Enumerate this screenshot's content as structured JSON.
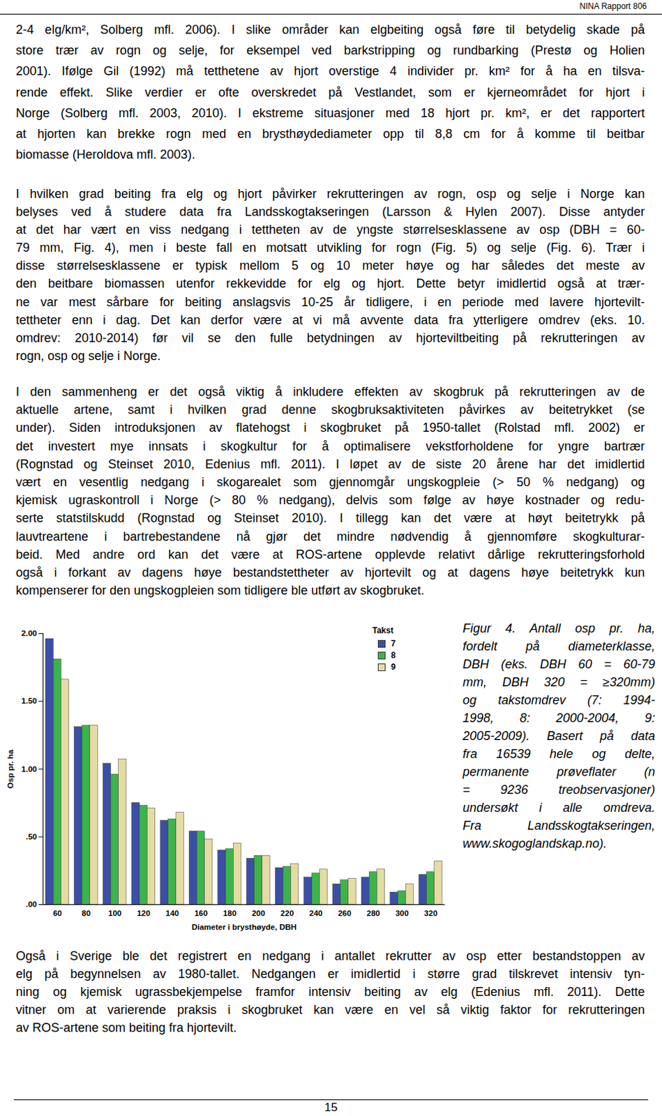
{
  "header": {
    "text": "NINA Rapport 806"
  },
  "paragraphs": [
    [
      "2-4 elg/km², Solberg mfl. 2006). I slike områder kan elgbeiting også føre til betydelig skade på",
      "store trær av rogn og selje, for eksempel ved barkstripping og rundbarking (Prestø og Holien",
      "2001). Ifølge Gil (1992) må tetthetene av hjort overstige 4 individer pr. km² for å ha en tilsva-",
      "rende effekt. Slike verdier er ofte overskredet på Vestlandet, som er kjerneområdet for hjort i",
      "Norge (Solberg mfl. 2003, 2010). I ekstreme situasjoner med 18 hjort pr. km², er det rapportert",
      "at hjorten kan brekke rogn med en brysthøydediameter opp til 8,8 cm for å komme til beitbar",
      "biomasse (Heroldova mfl. 2003)."
    ],
    [
      "I hvilken grad beiting fra elg og hjort påvirker rekrutteringen av rogn, osp og selje i Norge kan",
      "belyses ved å studere data fra Landsskogtakseringen (Larsson & Hylen 2007). Disse antyder",
      "at det har vært en viss nedgang i tettheten av de yngste størrelsesklassene av osp (DBH = 60-",
      "79 mm, Fig. 4), men i beste fall en motsatt utvikling for rogn (Fig. 5) og selje (Fig. 6). Trær i",
      "disse størrelsesklassene er typisk mellom 5 og 10 meter høye og har således det meste av",
      "den beitbare biomassen utenfor rekkevidde for elg og hjort. Dette betyr imidlertid også at trær-",
      "ne var mest sårbare for beiting anslagsvis 10-25 år tidligere, i en periode med lavere hjortevilt-",
      "tettheter enn i dag. Det kan derfor være at vi må avvente data fra ytterligere omdrev (eks. 10.",
      "omdrev: 2010-2014) før vil se den fulle betydningen av hjorteviltbeiting på rekrutteringen av",
      "rogn, osp og selje i Norge."
    ],
    [
      "I den sammenheng er det også viktig å inkludere effekten av skogbruk på rekrutteringen av de",
      "aktuelle artene, samt i hvilken grad denne skogbruksaktiviteten påvirkes av beitetrykket (se",
      "under). Siden introduksjonen av flatehogst i skogbruket på 1950-tallet (Rolstad mfl. 2002) er",
      "det investert mye innsats i skogkultur for å optimalisere vekstforholdene for yngre bartrær",
      "(Rognstad og Steinset 2010, Edenius mfl. 2011). I løpet av de siste 20 årene har det imidlertid",
      "vært en vesentlig nedgang i skogarealet som gjennomgår ungskogpleie (> 50 % nedgang) og",
      "kjemisk ugraskontroll i Norge (> 80 % nedgang), delvis som følge av høye kostnader og redu-",
      "serte statstilskudd (Rognstad og Steinset 2010). I tillegg kan det være at høyt beitetrykk på",
      "lauvtreartene i bartrebestandene nå gjør det mindre nødvendig å gjennomføre skogkulturar-",
      "beid. Med andre ord kan det være at ROS-artene opplevde relativt dårlige rekrutteringsforhold",
      "også i forkant av dagens høye bestandstettheter av hjortevilt og at dagens høye beitetrykk kun",
      "kompenserer for den ungskogpleien som tidligere ble utført av skogbruket."
    ],
    [
      "Også i Sverige ble det registrert en nedgang i antallet rekrutter av osp etter bestandstoppen av",
      "elg på begynnelsen av 1980-tallet. Nedgangen er imidlertid i større grad tilskrevet intensiv tyn-",
      "ning og kjemisk ugrassbekjempelse framfor intensiv beiting av elg (Edenius mfl. 2011). Dette",
      "vitner om at varierende praksis i skogbruket kan være en vel så viktig faktor for rekrutteringen",
      "av ROS-artene som beiting fra hjortevilt."
    ]
  ],
  "chart_data": {
    "type": "bar",
    "xlabel": "Diameter i brysthøyde, DBH",
    "ylabel": "Osp pr. ha",
    "categories": [
      60,
      80,
      100,
      120,
      140,
      160,
      180,
      200,
      220,
      240,
      260,
      280,
      300,
      320
    ],
    "series": [
      {
        "name": "7",
        "color": "#3b4fa6",
        "values": [
          1.96,
          1.31,
          1.04,
          0.75,
          0.62,
          0.54,
          0.4,
          0.34,
          0.27,
          0.2,
          0.15,
          0.2,
          0.09,
          0.22
        ]
      },
      {
        "name": "8",
        "color": "#3cb44a",
        "values": [
          1.81,
          1.32,
          0.96,
          0.73,
          0.63,
          0.54,
          0.41,
          0.36,
          0.28,
          0.23,
          0.18,
          0.24,
          0.1,
          0.24
        ]
      },
      {
        "name": "9",
        "color": "#e4dca3",
        "values": [
          1.66,
          1.32,
          1.07,
          0.71,
          0.68,
          0.48,
          0.45,
          0.36,
          0.3,
          0.26,
          0.19,
          0.26,
          0.15,
          0.32
        ]
      }
    ],
    "legend": "top-right",
    "legend_title": "Takst",
    "ylim": [
      0,
      2
    ],
    "yticks": [
      {
        "value": 0,
        "label": ".00"
      },
      {
        "value": 0.5,
        "label": ".50"
      },
      {
        "value": 1,
        "label": "1.00"
      },
      {
        "value": 1.5,
        "label": "1.50"
      },
      {
        "value": 2,
        "label": "2.00"
      }
    ],
    "grid": false
  },
  "caption": [
    "Figur 4. Antall osp pr. ha,",
    "fordelt på diameterklasse,",
    "DBH (eks. DBH 60 = 60-79",
    "mm, DBH 320 = ≥320mm)",
    "og takstomdrev (7: 1994-",
    "1998, 8: 2000-2004, 9:",
    "2005-2009). Basert på data",
    "fra 16539 hele og delte,",
    "permanente prøveflater (n",
    "= 9236 treobservasjoner)",
    "undersøkt i alle omdreva.",
    "Fra Landsskogtakseringen,",
    "www.skogoglandskap.no)."
  ],
  "page_number": "15"
}
